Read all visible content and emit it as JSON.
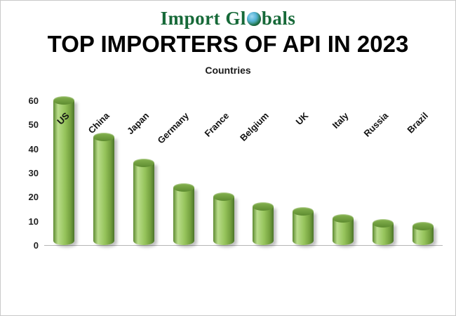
{
  "brand": {
    "part1": "Import",
    "part2": "Gl",
    "part3": "bals",
    "globe_icon": "globe-icon"
  },
  "title": "TOP IMPORTERS OF API IN 2023",
  "subtitle": "Countries",
  "colors": {
    "bar_fill": "#96C45C",
    "bar_highlight": "#B9DC8A",
    "bar_edge": "#4C752A",
    "brand_text": "#166938",
    "axis_line": "#B5B5B5"
  },
  "chart_data": {
    "type": "bar",
    "title": "TOP IMPORTERS OF API IN 2023",
    "xlabel": "Countries",
    "ylabel": "",
    "categories": [
      "US",
      "China",
      "Japan",
      "Germany",
      "France",
      "Belgium",
      "UK",
      "Italy",
      "Russia",
      "Brazil"
    ],
    "values": [
      60,
      45,
      34,
      24,
      20,
      16,
      14,
      11,
      9,
      8
    ],
    "ylim": [
      0,
      60
    ],
    "yticks": [
      0,
      10,
      20,
      30,
      40,
      50,
      60
    ],
    "grid": false,
    "legend": "none",
    "bar_style": "3d-cylinder-green"
  }
}
